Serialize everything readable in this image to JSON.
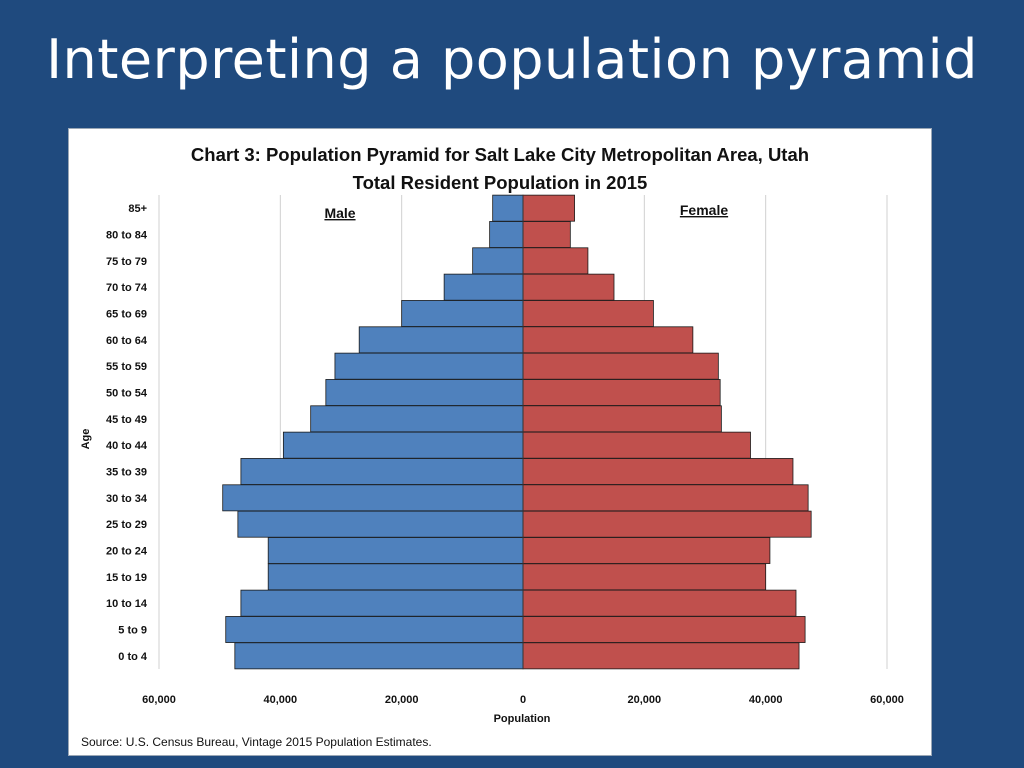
{
  "slide": {
    "title": "Interpreting a population pyramid"
  },
  "colors": {
    "background": "#1f4a7e",
    "male": "#4f81bd",
    "female": "#c0504d",
    "bar_stroke": "#1a1a1a"
  },
  "chart_data": {
    "type": "bar",
    "orientation": "horizontal-pyramid",
    "title": "Chart 3: Population Pyramid for Salt Lake City Metropolitan Area, Utah",
    "subtitle": "Total Resident Population in 2015",
    "xlabel": "Population",
    "ylabel": "Age",
    "xlim": [
      -60000,
      60000
    ],
    "x_ticks": [
      -60000,
      -40000,
      -20000,
      0,
      20000,
      40000,
      60000
    ],
    "x_tick_labels": [
      "60,000",
      "40,000",
      "20,000",
      "0",
      "20,000",
      "40,000",
      "60,000"
    ],
    "grid": "vertical",
    "categories": [
      "0 to 4",
      "5 to 9",
      "10 to 14",
      "15 to 19",
      "20 to 24",
      "25 to 29",
      "30 to 34",
      "35 to 39",
      "40 to 44",
      "45 to 49",
      "50 to 54",
      "55 to 59",
      "60 to 64",
      "65 to 69",
      "70 to 74",
      "75 to 79",
      "80 to 84",
      "85+"
    ],
    "series": [
      {
        "name": "Male",
        "side": "left",
        "values": [
          47500,
          49000,
          46500,
          42000,
          42000,
          47000,
          49500,
          46500,
          39500,
          35000,
          32500,
          31000,
          27000,
          20000,
          13000,
          8300,
          5500,
          5000
        ]
      },
      {
        "name": "Female",
        "side": "right",
        "values": [
          45500,
          46500,
          45000,
          40000,
          40700,
          47500,
          47000,
          44500,
          37500,
          32700,
          32500,
          32200,
          28000,
          21500,
          15000,
          10700,
          7800,
          8500
        ]
      }
    ],
    "legend": "top (labels above each half)",
    "source": "Source: U.S. Census Bureau, Vintage 2015 Population Estimates."
  }
}
